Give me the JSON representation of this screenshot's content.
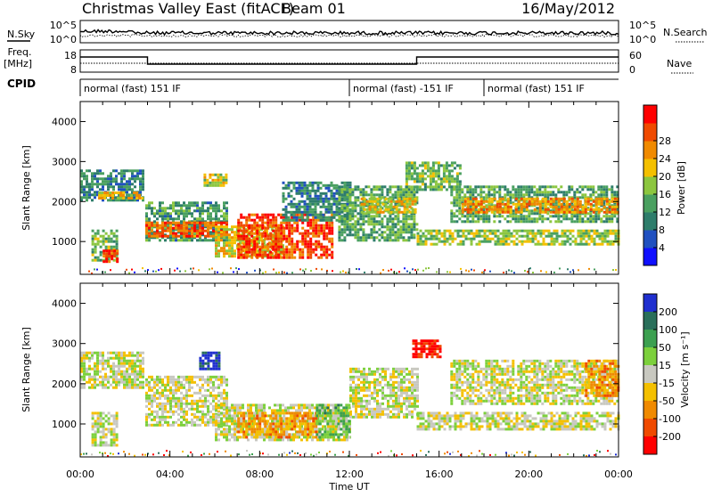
{
  "header": {
    "title": "Christmas Valley East (fitACF)",
    "beam": "Beam 01",
    "date": "16/May/2012"
  },
  "noise_panel": {
    "left_label": "N.Sky",
    "right_label": "N.Search",
    "left_ticks": [
      "10^5",
      "10^0"
    ],
    "right_ticks": [
      "10^5",
      "10^0"
    ]
  },
  "freq_panel": {
    "left_label_1": "Freq.",
    "left_label_2": "[MHz]",
    "right_label": "Nave",
    "left_ticks": [
      "18",
      "8"
    ],
    "right_ticks": [
      "60",
      "0"
    ]
  },
  "cpid_panel": {
    "label": "CPID",
    "segments": [
      {
        "start_hour": 0,
        "end_hour": 12,
        "text": "normal (fast) 151 IF"
      },
      {
        "start_hour": 12,
        "end_hour": 18,
        "text": "normal (fast) -151 IF"
      },
      {
        "start_hour": 18,
        "end_hour": 24,
        "text": "normal (fast) 151 IF"
      }
    ]
  },
  "chart_data": [
    {
      "type": "heatmap",
      "name": "power",
      "ylabel": "Slant Range [km]",
      "ylim": [
        180,
        4500
      ],
      "yticks": [
        1000,
        2000,
        3000,
        4000
      ],
      "xlim": [
        0,
        24
      ],
      "colorbar": {
        "label": "Power [dB]",
        "ticks": [
          "4",
          "8",
          "12",
          "16",
          "20",
          "24",
          "28"
        ],
        "colors": [
          "#1010ff",
          "#2050c0",
          "#2e7d6b",
          "#4aa060",
          "#8cc63f",
          "#f4c000",
          "#f08a00",
          "#f04a00",
          "#ff0000"
        ]
      },
      "regions": [
        {
          "t0": 0.0,
          "t1": 2.8,
          "r0": 2000,
          "r1": 2800,
          "level": 0.3
        },
        {
          "t0": 0.8,
          "t1": 2.8,
          "r0": 2050,
          "r1": 2250,
          "level": 0.65
        },
        {
          "t0": 0.5,
          "t1": 1.6,
          "r0": 500,
          "r1": 1300,
          "level": 0.45
        },
        {
          "t0": 1.0,
          "t1": 1.6,
          "r0": 500,
          "r1": 800,
          "level": 0.85
        },
        {
          "t0": 2.9,
          "t1": 6.5,
          "r0": 1000,
          "r1": 2000,
          "level": 0.35
        },
        {
          "t0": 2.9,
          "t1": 6.5,
          "r0": 1150,
          "r1": 1500,
          "level": 0.8
        },
        {
          "t0": 5.5,
          "t1": 6.5,
          "r0": 2400,
          "r1": 2700,
          "level": 0.55
        },
        {
          "t0": 6.0,
          "t1": 9.0,
          "r0": 600,
          "r1": 1400,
          "level": 0.6
        },
        {
          "t0": 7.0,
          "t1": 11.2,
          "r0": 600,
          "r1": 1700,
          "level": 0.85
        },
        {
          "t0": 9.0,
          "t1": 12.0,
          "r0": 1500,
          "r1": 2500,
          "level": 0.3
        },
        {
          "t0": 11.5,
          "t1": 15.0,
          "r0": 1000,
          "r1": 2400,
          "level": 0.4
        },
        {
          "t0": 12.5,
          "t1": 15.0,
          "r0": 1700,
          "r1": 2100,
          "level": 0.6
        },
        {
          "t0": 14.5,
          "t1": 17.0,
          "r0": 2300,
          "r1": 3000,
          "level": 0.45
        },
        {
          "t0": 15.0,
          "t1": 24.0,
          "r0": 900,
          "r1": 1300,
          "level": 0.5
        },
        {
          "t0": 16.5,
          "t1": 24.0,
          "r0": 1500,
          "r1": 2400,
          "level": 0.4
        },
        {
          "t0": 17.0,
          "t1": 24.0,
          "r0": 1700,
          "r1": 2100,
          "level": 0.7
        }
      ]
    },
    {
      "type": "heatmap",
      "name": "velocity",
      "ylabel": "Slant Range [km]",
      "ylim": [
        180,
        4500
      ],
      "yticks": [
        1000,
        2000,
        3000,
        4000
      ],
      "xlim": [
        0,
        24
      ],
      "colorbar": {
        "label": "Velocity [m s⁻¹]",
        "ticks": [
          "200",
          "100",
          "50",
          "15",
          "-15",
          "-50",
          "-100",
          "-200"
        ],
        "colors": [
          "#1f2fcf",
          "#2a6f5a",
          "#3ca050",
          "#7cd03c",
          "#c8c8c0",
          "#f4c000",
          "#f08a00",
          "#f04a00",
          "#ff0000"
        ]
      },
      "regions": [
        {
          "t0": 0.0,
          "t1": 2.8,
          "r0": 1900,
          "r1": 2800,
          "level": 0.5
        },
        {
          "t0": 0.5,
          "t1": 1.6,
          "r0": 500,
          "r1": 1300,
          "level": 0.5
        },
        {
          "t0": 2.9,
          "t1": 6.5,
          "r0": 1000,
          "r1": 2200,
          "level": 0.5
        },
        {
          "t0": 5.3,
          "t1": 6.2,
          "r0": 2400,
          "r1": 2800,
          "level": 0.05
        },
        {
          "t0": 6.0,
          "t1": 12.0,
          "r0": 600,
          "r1": 1500,
          "level": 0.5
        },
        {
          "t0": 7.0,
          "t1": 10.5,
          "r0": 700,
          "r1": 1300,
          "level": 0.68
        },
        {
          "t0": 10.5,
          "t1": 12.0,
          "r0": 700,
          "r1": 1500,
          "level": 0.35
        },
        {
          "t0": 12.0,
          "t1": 15.0,
          "r0": 1200,
          "r1": 2400,
          "level": 0.5
        },
        {
          "t0": 14.8,
          "t1": 16.0,
          "r0": 2700,
          "r1": 3100,
          "level": 0.95
        },
        {
          "t0": 15.0,
          "t1": 24.0,
          "r0": 900,
          "r1": 1300,
          "level": 0.5
        },
        {
          "t0": 16.5,
          "t1": 24.0,
          "r0": 1500,
          "r1": 2600,
          "level": 0.5
        },
        {
          "t0": 22.5,
          "t1": 24.0,
          "r0": 1700,
          "r1": 2600,
          "level": 0.7
        }
      ]
    }
  ],
  "xaxis": {
    "label": "Time UT",
    "ticks": [
      "00:00",
      "04:00",
      "08:00",
      "12:00",
      "16:00",
      "20:00",
      "00:00"
    ]
  }
}
